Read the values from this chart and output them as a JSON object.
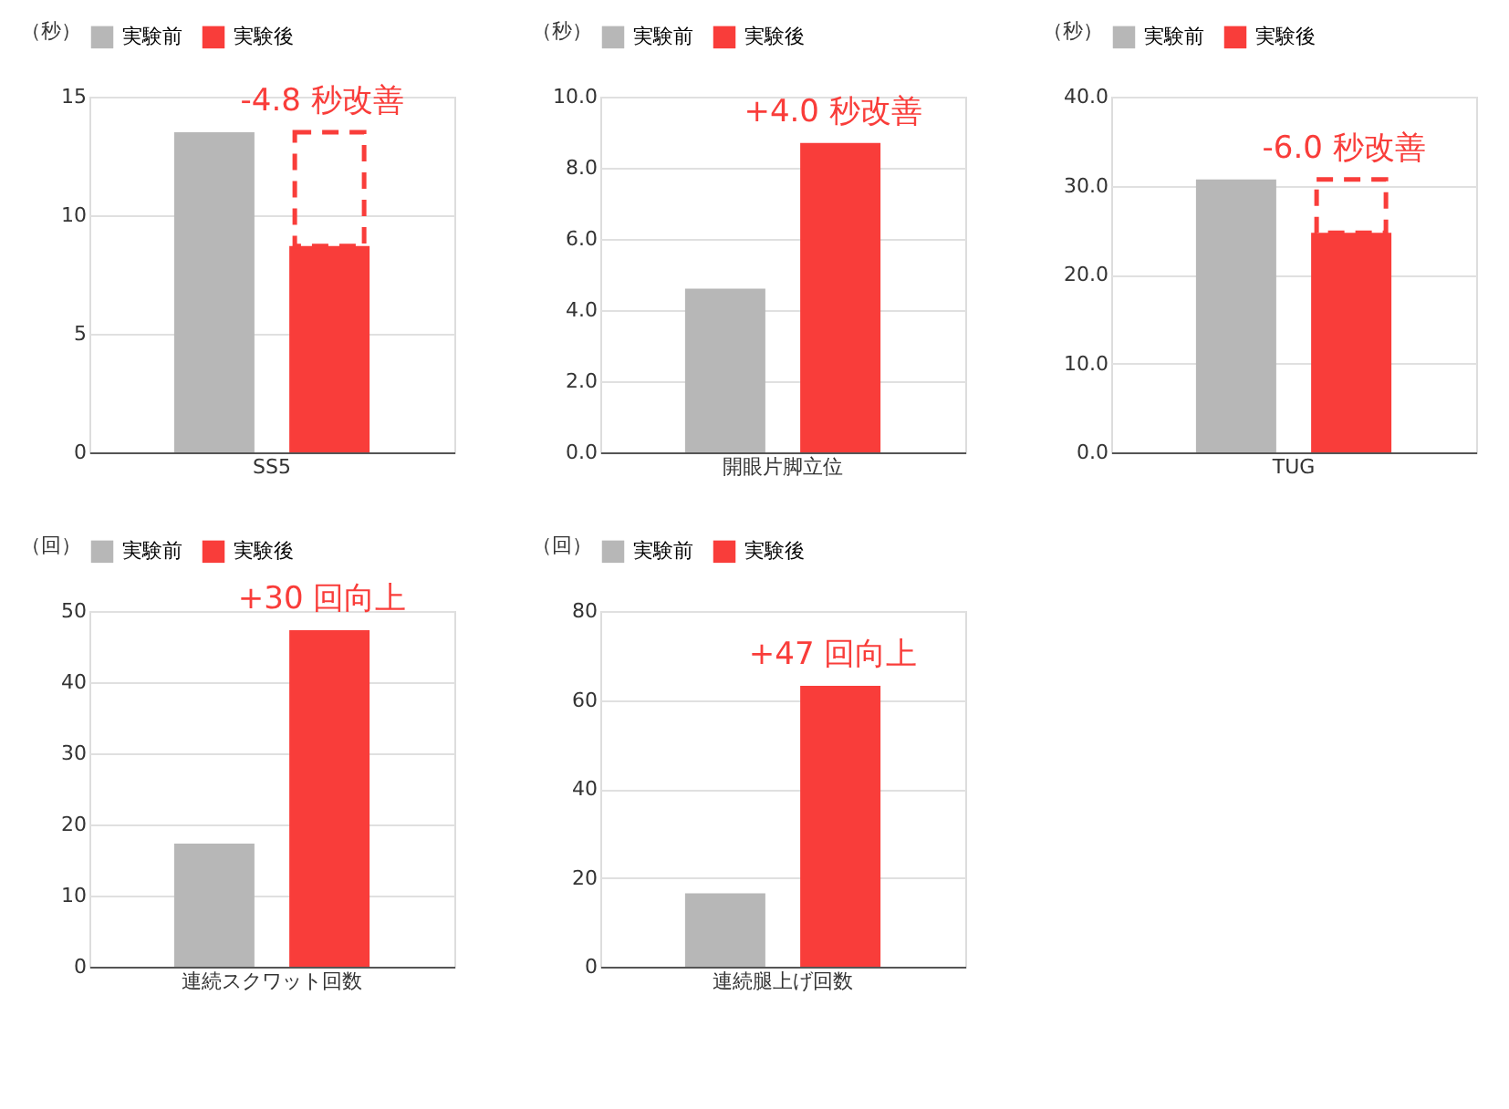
{
  "chart_data": [
    {
      "type": "bar",
      "ylabel": "（秒）",
      "categories": [
        "SS5"
      ],
      "legend": "top",
      "grid": "y",
      "series": [
        {
          "name": "実験前",
          "color": "#b7b7b7",
          "values": [
            13.5
          ]
        },
        {
          "name": "実験後",
          "color": "#f93d3a",
          "values": [
            8.7
          ]
        }
      ],
      "ylim": [
        0,
        15
      ],
      "yticks": [
        0,
        5,
        10,
        15
      ],
      "annotations": [
        "-4.8 秒改善"
      ]
    },
    {
      "type": "bar",
      "ylabel": "（秒）",
      "categories": [
        "開眼片脚立位"
      ],
      "legend": "top",
      "grid": "y",
      "series": [
        {
          "name": "実験前",
          "color": "#b7b7b7",
          "values": [
            4.6
          ]
        },
        {
          "name": "実験後",
          "color": "#f93d3a",
          "values": [
            8.7
          ]
        }
      ],
      "ylim": [
        0,
        10
      ],
      "yticks": [
        {
          "value": 0,
          "label": "0.0"
        },
        {
          "value": 2,
          "label": "2.0"
        },
        {
          "value": 4,
          "label": "4.0"
        },
        {
          "value": 6,
          "label": "6.0"
        },
        {
          "value": 8,
          "label": "8.0"
        },
        {
          "value": 10,
          "label": "10.0"
        }
      ],
      "annotations": [
        "+4.0 秒改善"
      ]
    },
    {
      "type": "bar",
      "ylabel": "（秒）",
      "categories": [
        "TUG"
      ],
      "legend": "top",
      "grid": "y",
      "series": [
        {
          "name": "実験前",
          "color": "#b7b7b7",
          "values": [
            30.7
          ]
        },
        {
          "name": "実験後",
          "color": "#f93d3a",
          "values": [
            24.7
          ]
        }
      ],
      "ylim": [
        0,
        40
      ],
      "yticks": [
        {
          "value": 0,
          "label": "0.0"
        },
        {
          "value": 10,
          "label": "10.0"
        },
        {
          "value": 20,
          "label": "20.0"
        },
        {
          "value": 30,
          "label": "30.0"
        },
        {
          "value": 40,
          "label": "40.0"
        }
      ],
      "annotations": [
        "-6.0 秒改善"
      ]
    },
    {
      "type": "bar",
      "ylabel": "（回）",
      "categories": [
        "連続スクワット回数"
      ],
      "legend": "top",
      "grid": "y",
      "series": [
        {
          "name": "実験前",
          "color": "#b7b7b7",
          "values": [
            17.3
          ]
        },
        {
          "name": "実験後",
          "color": "#f93d3a",
          "values": [
            47.3
          ]
        }
      ],
      "ylim": [
        0,
        50
      ],
      "yticks": [
        0,
        10,
        20,
        30,
        40,
        50
      ],
      "annotations": [
        "+30 回向上"
      ]
    },
    {
      "type": "bar",
      "ylabel": "（回）",
      "categories": [
        "連続腿上げ回数"
      ],
      "legend": "top",
      "grid": "y",
      "series": [
        {
          "name": "実験前",
          "color": "#b7b7b7",
          "values": [
            16.5
          ]
        },
        {
          "name": "実験後",
          "color": "#f93d3a",
          "values": [
            63.2
          ]
        }
      ],
      "ylim": [
        0,
        80
      ],
      "yticks": [
        0,
        20,
        40,
        60,
        80
      ],
      "annotations": [
        "+47 回向上"
      ]
    }
  ]
}
